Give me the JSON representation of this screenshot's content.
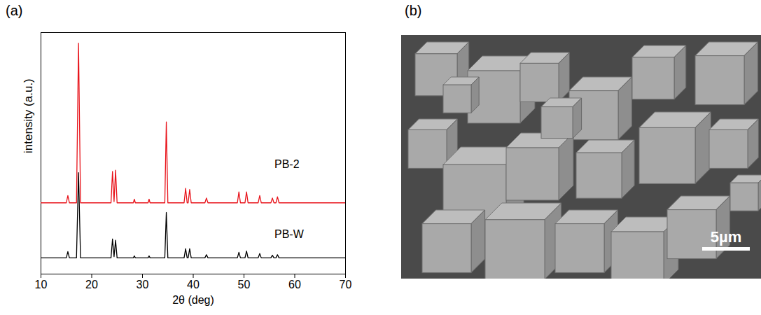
{
  "chart_data": [
    {
      "type": "line",
      "panel": "(a)",
      "xlabel": "2θ (deg)",
      "ylabel": "intensity (a.u.)",
      "xlim": [
        10,
        70
      ],
      "xticks": [
        10,
        20,
        30,
        40,
        50,
        60,
        70
      ],
      "ylim": [
        0,
        100
      ],
      "tick_labels": "x",
      "grid": false,
      "x": [
        10,
        15.0,
        15.3,
        15.6,
        17.0,
        17.4,
        17.8,
        23.8,
        24.1,
        24.4,
        24.7,
        25.0,
        28.2,
        28.4,
        28.6,
        31.1,
        31.3,
        31.5,
        34.4,
        34.7,
        35.0,
        38.2,
        38.5,
        38.8,
        39.0,
        39.3,
        39.6,
        42.3,
        42.6,
        42.9,
        48.7,
        49.0,
        49.3,
        50.2,
        50.5,
        50.8,
        52.8,
        53.1,
        53.4,
        55.3,
        55.6,
        55.9,
        56.3,
        56.6,
        56.9,
        70
      ],
      "series": [
        {
          "name": "PB-2",
          "color": "#e8141b",
          "values": [
            29.5,
            29.5,
            32.5,
            29.5,
            29.5,
            95.6,
            29.5,
            29.5,
            42.5,
            30,
            43,
            29.5,
            29.5,
            31,
            29.5,
            29.5,
            31,
            29.5,
            29.5,
            63,
            29.5,
            29.5,
            35.5,
            29.5,
            29.5,
            35,
            29.5,
            29.5,
            31.5,
            29.5,
            29.5,
            34,
            29.5,
            29.5,
            34,
            29.5,
            29.5,
            32.5,
            29.5,
            29.5,
            31.5,
            29.5,
            29.5,
            32,
            29.5,
            29.5
          ]
        },
        {
          "name": "PB-W",
          "color": "#000000",
          "values": [
            6.7,
            6.7,
            9.3,
            6.7,
            6.7,
            42,
            6.7,
            6.7,
            14.5,
            7.2,
            14,
            6.7,
            6.7,
            7.5,
            6.7,
            6.7,
            7.5,
            6.7,
            6.7,
            25.5,
            6.7,
            6.7,
            10.5,
            6.7,
            6.7,
            10.5,
            6.7,
            6.7,
            8,
            6.7,
            6.7,
            9,
            6.7,
            6.7,
            9.5,
            6.7,
            6.7,
            8.5,
            6.7,
            6.7,
            7.8,
            6.7,
            6.7,
            8,
            6.7,
            6.7
          ]
        }
      ],
      "annotations": [
        {
          "text": "PB-2",
          "x": 56,
          "y": 45.5
        },
        {
          "text": "PB-W",
          "x": 56,
          "y": 16.5
        }
      ]
    },
    {
      "type": "image",
      "panel": "(b)",
      "scale_bar": "5µm"
    }
  ]
}
